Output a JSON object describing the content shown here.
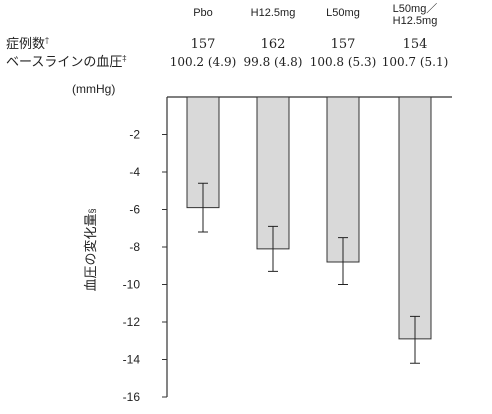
{
  "chart_data": {
    "type": "bar",
    "categories": [
      {
        "lines": [
          "Pbo"
        ]
      },
      {
        "lines": [
          "H12.5mg"
        ]
      },
      {
        "lines": [
          "L50mg"
        ]
      },
      {
        "lines": [
          "L50mg／",
          "H12.5mg"
        ]
      }
    ],
    "series": [
      {
        "values": [
          -5.9,
          -8.1,
          -8.8,
          -12.9
        ],
        "error_bars": [
          [
            -7.2,
            -4.6
          ],
          [
            -9.3,
            -6.9
          ],
          [
            -10.0,
            -7.5
          ],
          [
            -14.2,
            -11.7
          ]
        ]
      }
    ],
    "row_labels": {
      "n": "症例数",
      "n_mark": "†",
      "baseline": "ベースラインの血圧",
      "baseline_mark": "‡"
    },
    "n_values": [
      "157",
      "162",
      "157",
      "154"
    ],
    "baseline_values": [
      "100.2 (4.9)",
      "99.8 (4.8)",
      "100.8 (5.3)",
      "100.7 (5.1)"
    ],
    "unit_label": "(mmHg)",
    "ylabel": "血圧の変化量",
    "ylabel_mark": "§",
    "yticks": [
      -2,
      -4,
      -6,
      -8,
      -10,
      -12,
      -14,
      -16
    ],
    "ylim": [
      -16,
      0
    ],
    "grid": false,
    "bar_color": "#d9d9d9",
    "bar_stroke": "#333333"
  }
}
